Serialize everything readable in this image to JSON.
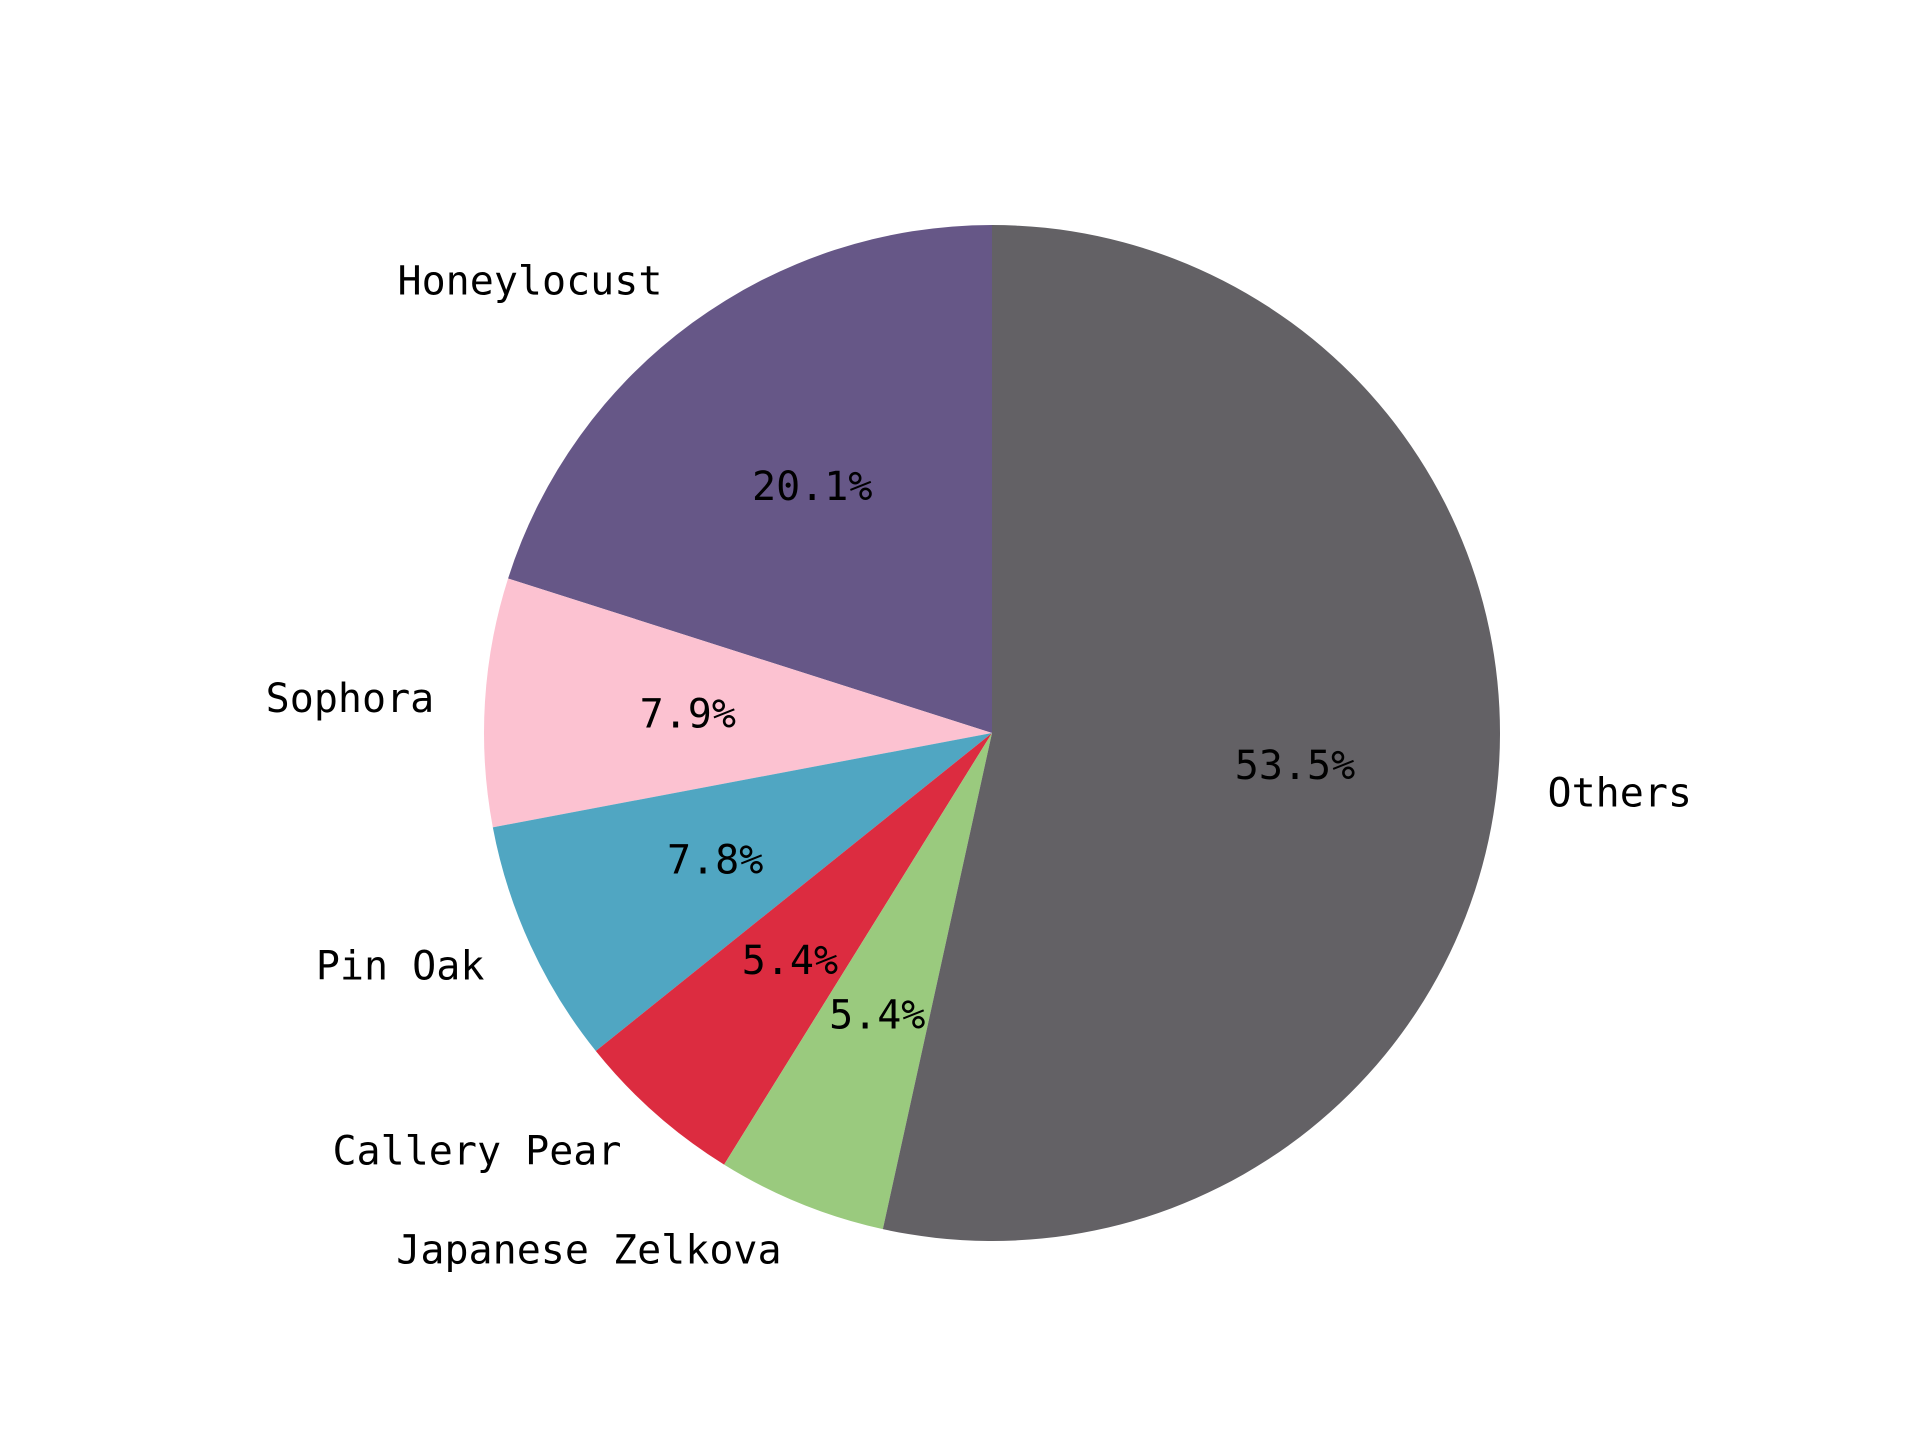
{
  "chart_data": {
    "type": "pie",
    "title": "",
    "labels": [
      "Honeylocust",
      "Sophora",
      "Pin Oak",
      "Callery Pear",
      "Japanese Zelkova",
      "Others"
    ],
    "values": [
      20.1,
      7.9,
      7.8,
      5.4,
      5.4,
      53.5
    ],
    "value_labels": [
      "20.1%",
      "7.9%",
      "7.8%",
      "5.4%",
      "5.4%",
      "53.5%"
    ],
    "colors": [
      "#665787",
      "#fcc2d1",
      "#50a6c2",
      "#dc2c40",
      "#9aca7e",
      "#636165"
    ],
    "start_angle_deg": 90,
    "direction": "counterclockwise",
    "legend": "none",
    "grid": false
  }
}
